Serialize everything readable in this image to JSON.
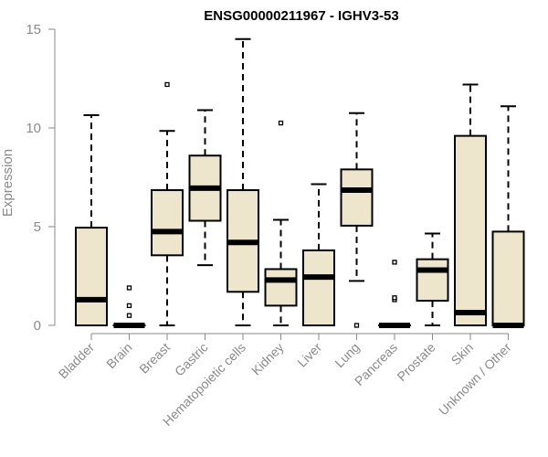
{
  "chart_data": {
    "type": "boxplot",
    "title": "ENSG00000211967 - IGHV3-53",
    "ylabel": "Expression",
    "ylim": [
      0,
      15
    ],
    "yticks": [
      0,
      5,
      10,
      15
    ],
    "grid": false,
    "colors": {
      "box_fill": "#ede6cc",
      "box_stroke": "#000000"
    },
    "categories": [
      "Bladder",
      "Brain",
      "Breast",
      "Gastric",
      "Hematopoietic cells",
      "Kidney",
      "Liver",
      "Lung",
      "Pancreas",
      "Prostate",
      "Skin",
      "Unknown / Other"
    ],
    "boxes": [
      {
        "whislo": 0,
        "q1": 0,
        "med": 1.3,
        "q3": 4.95,
        "whishi": 10.65,
        "fliers": []
      },
      {
        "whislo": 0,
        "q1": 0,
        "med": 0,
        "q3": 0,
        "whishi": 0,
        "fliers": [
          0.5,
          1.0,
          1.9
        ]
      },
      {
        "whislo": 0,
        "q1": 3.55,
        "med": 4.75,
        "q3": 6.85,
        "whishi": 9.85,
        "fliers": [
          12.2
        ]
      },
      {
        "whislo": 3.05,
        "q1": 5.3,
        "med": 6.95,
        "q3": 8.6,
        "whishi": 10.9,
        "fliers": []
      },
      {
        "whislo": 0,
        "q1": 1.7,
        "med": 4.2,
        "q3": 6.85,
        "whishi": 14.5,
        "fliers": []
      },
      {
        "whislo": 0,
        "q1": 1.0,
        "med": 2.3,
        "q3": 2.85,
        "whishi": 5.35,
        "fliers": [
          10.25
        ]
      },
      {
        "whislo": 0,
        "q1": 0,
        "med": 2.45,
        "q3": 3.8,
        "whishi": 7.15,
        "fliers": []
      },
      {
        "whislo": 2.25,
        "q1": 5.05,
        "med": 6.85,
        "q3": 7.9,
        "whishi": 10.75,
        "fliers": [
          0
        ]
      },
      {
        "whislo": 0,
        "q1": 0,
        "med": 0,
        "q3": 0,
        "whishi": 0,
        "fliers": [
          1.3,
          1.4,
          3.2
        ]
      },
      {
        "whislo": 0,
        "q1": 1.25,
        "med": 2.8,
        "q3": 3.35,
        "whishi": 4.65,
        "fliers": []
      },
      {
        "whislo": 0,
        "q1": 0,
        "med": 0.65,
        "q3": 9.6,
        "whishi": 12.2,
        "fliers": []
      },
      {
        "whislo": 0,
        "q1": 0,
        "med": 0,
        "q3": 4.75,
        "whishi": 11.1,
        "fliers": []
      }
    ]
  }
}
